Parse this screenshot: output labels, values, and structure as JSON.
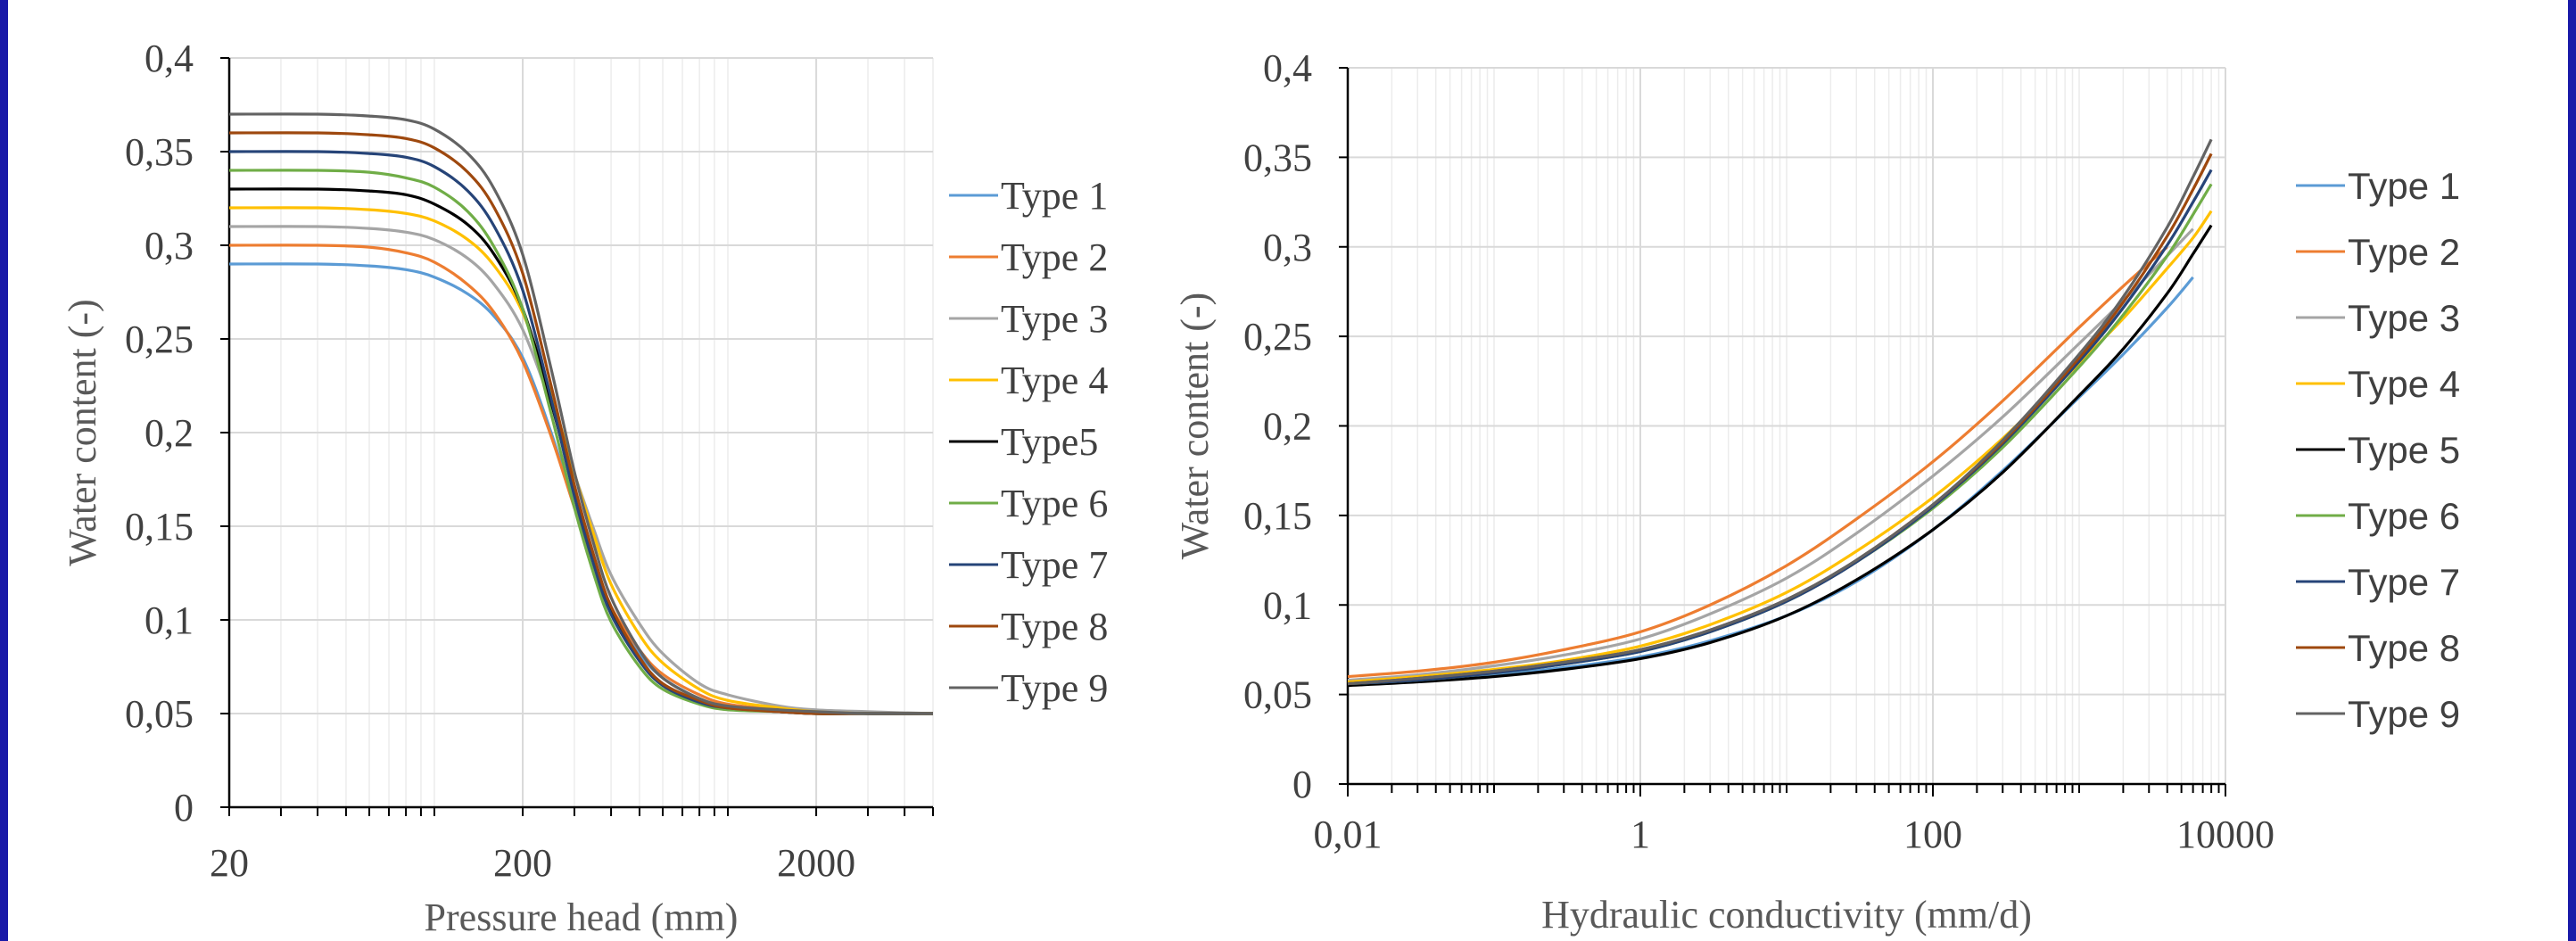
{
  "colors": {
    "border": "#1a1aa8",
    "grid_major": "#d9d9d9",
    "grid_minor": "#ececec",
    "axis": "#000000",
    "series": [
      "#5b9bd5",
      "#ed7d31",
      "#a5a5a5",
      "#ffc000",
      "#000000",
      "#70ad47",
      "#264478",
      "#9e480e",
      "#636363"
    ]
  },
  "chart_data": [
    {
      "type": "line",
      "xlabel": "Pressure head (mm)",
      "ylabel": "Water content (-)",
      "x_scale": "log",
      "xlim": [
        20,
        5000
      ],
      "ylim": [
        0,
        0.4
      ],
      "x_ticks": [
        20,
        200,
        2000
      ],
      "x_tick_labels": [
        "20",
        "200",
        "2000"
      ],
      "y_ticks": [
        0,
        0.05,
        0.1,
        0.15,
        0.2,
        0.25,
        0.3,
        0.35,
        0.4
      ],
      "y_tick_labels": [
        "0",
        "0,05",
        "0,1",
        "0,15",
        "0,2",
        "0,25",
        "0,3",
        "0,35",
        "0,4"
      ],
      "grid": true,
      "legend": "right",
      "x": [
        20,
        40,
        60,
        80,
        100,
        130,
        160,
        200,
        250,
        300,
        350,
        400,
        500,
        600,
        800,
        1000,
        1500,
        2000,
        3000,
        5000
      ],
      "series": [
        {
          "name": "Type 1",
          "values": [
            0.29,
            0.29,
            0.289,
            0.287,
            0.283,
            0.274,
            0.262,
            0.24,
            0.2,
            0.16,
            0.13,
            0.105,
            0.082,
            0.069,
            0.058,
            0.054,
            0.052,
            0.051,
            0.05,
            0.05
          ]
        },
        {
          "name": "Type 2",
          "values": [
            0.3,
            0.3,
            0.299,
            0.296,
            0.291,
            0.279,
            0.264,
            0.238,
            0.198,
            0.16,
            0.13,
            0.107,
            0.084,
            0.071,
            0.06,
            0.055,
            0.052,
            0.051,
            0.05,
            0.05
          ]
        },
        {
          "name": "Type 3",
          "values": [
            0.31,
            0.31,
            0.309,
            0.307,
            0.303,
            0.293,
            0.279,
            0.255,
            0.215,
            0.178,
            0.148,
            0.124,
            0.098,
            0.082,
            0.066,
            0.06,
            0.054,
            0.052,
            0.051,
            0.05
          ]
        },
        {
          "name": "Type 4",
          "values": [
            0.32,
            0.32,
            0.319,
            0.317,
            0.313,
            0.303,
            0.289,
            0.264,
            0.22,
            0.178,
            0.145,
            0.119,
            0.092,
            0.077,
            0.063,
            0.057,
            0.053,
            0.051,
            0.05,
            0.05
          ]
        },
        {
          "name": "Type5",
          "values": [
            0.33,
            0.33,
            0.329,
            0.327,
            0.322,
            0.311,
            0.295,
            0.266,
            0.216,
            0.169,
            0.133,
            0.106,
            0.079,
            0.065,
            0.056,
            0.053,
            0.051,
            0.05,
            0.05,
            0.05
          ]
        },
        {
          "name": "Type 6",
          "values": [
            0.34,
            0.34,
            0.339,
            0.336,
            0.331,
            0.318,
            0.299,
            0.266,
            0.21,
            0.16,
            0.124,
            0.099,
            0.075,
            0.063,
            0.055,
            0.052,
            0.051,
            0.05,
            0.05,
            0.05
          ]
        },
        {
          "name": "Type 7",
          "values": [
            0.35,
            0.35,
            0.349,
            0.347,
            0.342,
            0.329,
            0.31,
            0.276,
            0.218,
            0.166,
            0.129,
            0.103,
            0.078,
            0.065,
            0.056,
            0.053,
            0.051,
            0.05,
            0.05,
            0.05
          ]
        },
        {
          "name": "Type 8",
          "values": [
            0.36,
            0.36,
            0.359,
            0.357,
            0.352,
            0.339,
            0.32,
            0.285,
            0.225,
            0.172,
            0.134,
            0.107,
            0.08,
            0.066,
            0.057,
            0.053,
            0.051,
            0.05,
            0.05,
            0.05
          ]
        },
        {
          "name": "Type 9",
          "values": [
            0.37,
            0.37,
            0.369,
            0.367,
            0.362,
            0.349,
            0.33,
            0.295,
            0.234,
            0.179,
            0.14,
            0.112,
            0.084,
            0.069,
            0.058,
            0.054,
            0.052,
            0.051,
            0.05,
            0.05
          ]
        }
      ]
    },
    {
      "type": "line",
      "xlabel": "Hydraulic conductivity (mm/d)",
      "ylabel": "Water content (-)",
      "x_scale": "log",
      "xlim": [
        0.01,
        10000
      ],
      "ylim": [
        0,
        0.4
      ],
      "x_ticks": [
        0.01,
        1,
        100,
        10000
      ],
      "x_tick_labels": [
        "0,01",
        "1",
        "100",
        "10000"
      ],
      "y_ticks": [
        0,
        0.05,
        0.1,
        0.15,
        0.2,
        0.25,
        0.3,
        0.35,
        0.4
      ],
      "y_tick_labels": [
        "0",
        "0,05",
        "0,1",
        "0,15",
        "0,2",
        "0,25",
        "0,3",
        "0,35",
        "0,4"
      ],
      "grid": true,
      "legend": "right",
      "x": [
        0.01,
        0.03,
        0.1,
        0.3,
        1,
        3,
        10,
        30,
        100,
        300,
        1000,
        2000,
        4000,
        6000,
        8000
      ],
      "series": [
        {
          "name": "Type 1",
          "values": [
            0.056,
            0.058,
            0.061,
            0.065,
            0.071,
            0.08,
            0.094,
            0.113,
            0.142,
            0.175,
            0.216,
            0.24,
            0.266,
            0.283,
            null
          ]
        },
        {
          "name": "Type 2",
          "values": [
            0.06,
            0.063,
            0.068,
            0.075,
            0.085,
            0.1,
            0.122,
            0.148,
            0.18,
            0.214,
            0.255,
            0.278,
            0.3,
            null,
            null
          ]
        },
        {
          "name": "Type 3",
          "values": [
            0.058,
            0.061,
            0.066,
            0.072,
            0.081,
            0.095,
            0.115,
            0.14,
            0.172,
            0.205,
            0.246,
            0.27,
            0.295,
            0.31,
            null
          ]
        },
        {
          "name": "Type 4",
          "values": [
            0.057,
            0.06,
            0.064,
            0.069,
            0.077,
            0.089,
            0.107,
            0.13,
            0.16,
            0.193,
            0.235,
            0.26,
            0.288,
            0.305,
            0.32
          ]
        },
        {
          "name": "Type 5",
          "values": [
            0.055,
            0.057,
            0.06,
            0.064,
            0.07,
            0.079,
            0.094,
            0.114,
            0.142,
            0.174,
            0.217,
            0.243,
            0.274,
            0.296,
            0.312
          ]
        },
        {
          "name": "Type 6",
          "values": [
            0.056,
            0.058,
            0.062,
            0.067,
            0.074,
            0.085,
            0.102,
            0.124,
            0.154,
            0.188,
            0.233,
            0.262,
            0.295,
            0.318,
            0.335
          ]
        },
        {
          "name": "Type 7",
          "values": [
            0.056,
            0.058,
            0.062,
            0.067,
            0.074,
            0.085,
            0.102,
            0.124,
            0.155,
            0.19,
            0.236,
            0.266,
            0.301,
            0.325,
            0.343
          ]
        },
        {
          "name": "Type 8",
          "values": [
            0.056,
            0.059,
            0.063,
            0.068,
            0.075,
            0.086,
            0.103,
            0.125,
            0.156,
            0.191,
            0.238,
            0.269,
            0.306,
            0.332,
            0.352
          ]
        },
        {
          "name": "Type 9",
          "values": [
            0.056,
            0.059,
            0.063,
            0.068,
            0.075,
            0.086,
            0.103,
            0.125,
            0.156,
            0.192,
            0.24,
            0.272,
            0.311,
            0.339,
            0.36
          ]
        }
      ]
    }
  ]
}
